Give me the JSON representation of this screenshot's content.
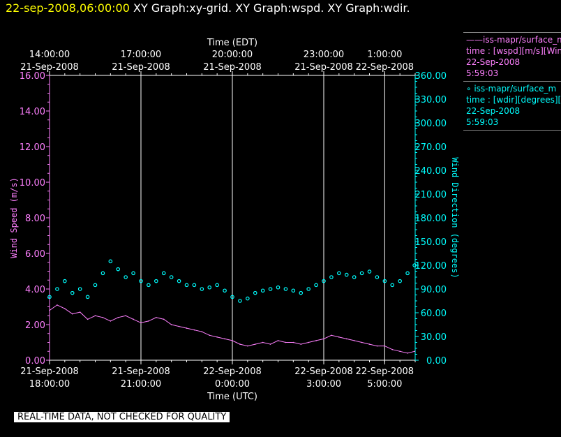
{
  "header": {
    "timestamp": "22-sep-2008,06:00:00",
    "graphs": "XY Graph:xy-grid.  XY Graph:wspd.  XY Graph:wdir."
  },
  "legend": [
    {
      "symbol": "——",
      "series": "iss-mapr/surface_m",
      "desc": "time : [wspd][m/s][Wind",
      "date": "22-Sep-2008",
      "time": "5:59:03",
      "color": "#ff80ff"
    },
    {
      "symbol": "∘",
      "series": "iss-mapr/surface_m",
      "desc": "time : [wdir][degrees][W",
      "date": "22-Sep-2008",
      "time": "5:59:03",
      "color": "#00ffff"
    }
  ],
  "footer": "REAL-TIME DATA, NOT CHECKED FOR QUALITY",
  "colors": {
    "speed": "#ff80ff",
    "direction": "#00ffff",
    "grid": "#ffffff",
    "background": "#000000"
  },
  "chart_data": {
    "type": "line+scatter",
    "top_axis": {
      "label": "Time (EDT)",
      "ticks": [
        {
          "hours": 0,
          "time": "14:00:00",
          "date": "21-Sep-2008"
        },
        {
          "hours": 3,
          "time": "17:00:00",
          "date": "21-Sep-2008"
        },
        {
          "hours": 6,
          "time": "20:00:00",
          "date": "21-Sep-2008"
        },
        {
          "hours": 9,
          "time": "23:00:00",
          "date": "21-Sep-2008"
        },
        {
          "hours": 11,
          "time": "1:00:00",
          "date": "22-Sep-2008"
        }
      ]
    },
    "bottom_axis": {
      "label": "Time (UTC)",
      "ticks": [
        {
          "hours": 0,
          "date": "21-Sep-2008",
          "time": "18:00:00"
        },
        {
          "hours": 3,
          "date": "21-Sep-2008",
          "time": "21:00:00"
        },
        {
          "hours": 6,
          "date": "22-Sep-2008",
          "time": "0:00:00"
        },
        {
          "hours": 9,
          "date": "22-Sep-2008",
          "time": "3:00:00"
        },
        {
          "hours": 11,
          "date": "22-Sep-2008",
          "time": "5:00:00"
        }
      ],
      "range_hours": [
        0,
        12
      ]
    },
    "left_axis": {
      "label": "Wind Speed (m/s)",
      "range": [
        0,
        16
      ],
      "ticks": [
        "0.00",
        "2.00",
        "4.00",
        "6.00",
        "8.00",
        "10.00",
        "12.00",
        "14.00",
        "16.00"
      ]
    },
    "right_axis": {
      "label": "Wind Direction (degrees)",
      "range": [
        0,
        360
      ],
      "ticks": [
        "0.00",
        "30.00",
        "60.00",
        "90.00",
        "120.00",
        "150.00",
        "180.00",
        "210.00",
        "240.00",
        "270.00",
        "300.00",
        "330.00",
        "360.00"
      ]
    },
    "grid": "vertical lines at major time ticks",
    "series": [
      {
        "name": "wspd",
        "kind": "line",
        "axis": "left",
        "x_hours": [
          0.0,
          0.25,
          0.5,
          0.75,
          1.0,
          1.25,
          1.5,
          1.75,
          2.0,
          2.25,
          2.5,
          2.75,
          3.0,
          3.25,
          3.5,
          3.75,
          4.0,
          4.25,
          4.5,
          4.75,
          5.0,
          5.25,
          5.5,
          5.75,
          6.0,
          6.25,
          6.5,
          6.75,
          7.0,
          7.25,
          7.5,
          7.75,
          8.0,
          8.25,
          8.5,
          8.75,
          9.0,
          9.25,
          9.5,
          9.75,
          10.0,
          10.25,
          10.5,
          10.75,
          11.0,
          11.25,
          11.5,
          11.75,
          11.98
        ],
        "values": [
          2.8,
          3.1,
          2.9,
          2.6,
          2.7,
          2.3,
          2.5,
          2.4,
          2.2,
          2.4,
          2.5,
          2.3,
          2.1,
          2.2,
          2.4,
          2.3,
          2.0,
          1.9,
          1.8,
          1.7,
          1.6,
          1.4,
          1.3,
          1.2,
          1.1,
          0.9,
          0.8,
          0.9,
          1.0,
          0.9,
          1.1,
          1.0,
          1.0,
          0.9,
          1.0,
          1.1,
          1.2,
          1.4,
          1.3,
          1.2,
          1.1,
          1.0,
          0.9,
          0.8,
          0.8,
          0.6,
          0.5,
          0.4,
          0.5
        ]
      },
      {
        "name": "wdir",
        "kind": "scatter",
        "axis": "right",
        "x_hours": [
          0.0,
          0.25,
          0.5,
          0.75,
          1.0,
          1.25,
          1.5,
          1.75,
          2.0,
          2.25,
          2.5,
          2.75,
          3.0,
          3.25,
          3.5,
          3.75,
          4.0,
          4.25,
          4.5,
          4.75,
          5.0,
          5.25,
          5.5,
          5.75,
          6.0,
          6.25,
          6.5,
          6.75,
          7.0,
          7.25,
          7.5,
          7.75,
          8.0,
          8.25,
          8.5,
          8.75,
          9.0,
          9.25,
          9.5,
          9.75,
          10.0,
          10.25,
          10.5,
          10.75,
          11.0,
          11.25,
          11.5,
          11.75,
          11.98
        ],
        "values": [
          80,
          90,
          100,
          85,
          90,
          80,
          95,
          110,
          125,
          115,
          105,
          110,
          100,
          95,
          100,
          110,
          105,
          100,
          95,
          95,
          90,
          92,
          95,
          88,
          80,
          75,
          78,
          85,
          88,
          90,
          92,
          90,
          88,
          85,
          90,
          95,
          100,
          105,
          110,
          108,
          105,
          110,
          112,
          105,
          100,
          95,
          100,
          110,
          120
        ]
      }
    ]
  }
}
